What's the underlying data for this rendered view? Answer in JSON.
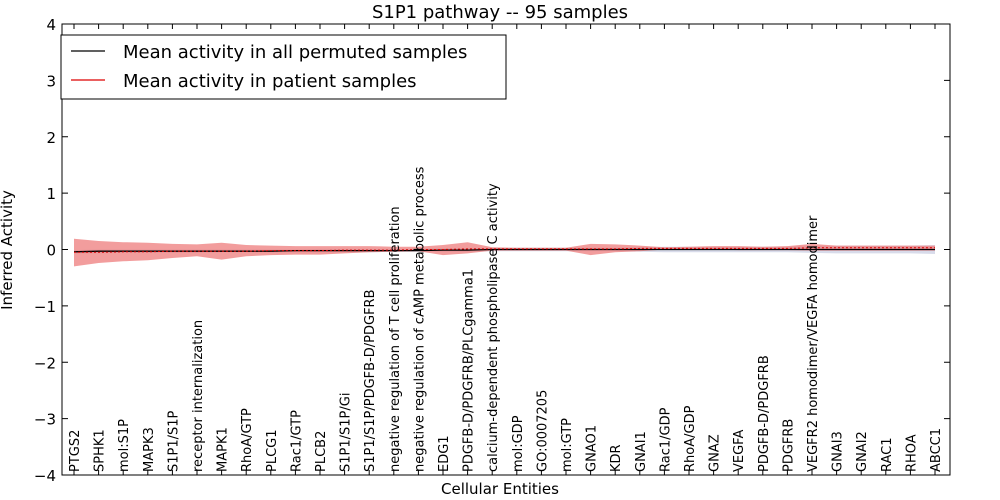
{
  "chart_data": {
    "type": "line",
    "title": "S1P1 pathway -- 95 samples",
    "xlabel": "Cellular Entities",
    "ylabel": "Inferred Activity",
    "ylim": [
      -4,
      4
    ],
    "yticks": [
      4,
      3,
      2,
      1,
      0,
      -1,
      -2,
      -3,
      -4
    ],
    "ytick_labels": [
      "4",
      "3",
      "2",
      "1",
      "0",
      "−1",
      "−2",
      "−3",
      "−4"
    ],
    "grid": false,
    "legend_position": "top-left",
    "categories": [
      "PTGS2",
      "SPHK1",
      "mol:S1P",
      "MAPK3",
      "S1P1/S1P",
      "receptor internalization",
      "MAPK1",
      "RhoA/GTP",
      "PLCG1",
      "Rac1/GTP",
      "PLCB2",
      "S1P1/S1P/Gi",
      "S1P1/S1P/PDGFB-D/PDGFRB",
      "negative regulation of T cell proliferation",
      "negative regulation of cAMP metabolic process",
      "EDG1",
      "PDGFB-D/PDGFRB/PLCgamma1",
      "calcium-dependent phospholipase C activity",
      "mol:GDP",
      "GO:0007205",
      "mol:GTP",
      "GNAO1",
      "KDR",
      "GNAI1",
      "Rac1/GDP",
      "RhoA/GDP",
      "GNAZ",
      "VEGFA",
      "PDGFB-D/PDGFRB",
      "PDGFRB",
      "VEGFR2 homodimer/VEGFA homodimer",
      "GNAI3",
      "GNAI2",
      "RAC1",
      "RHOA",
      "ABCC1"
    ],
    "series": [
      {
        "name": "Mean activity in all permuted samples",
        "color": "#000000",
        "values": [
          -0.04,
          -0.03,
          -0.03,
          -0.03,
          -0.03,
          -0.03,
          -0.03,
          -0.03,
          -0.03,
          -0.02,
          -0.02,
          -0.02,
          -0.02,
          -0.02,
          -0.02,
          -0.01,
          -0.01,
          0.0,
          0.0,
          0.0,
          0.0,
          0.0,
          0.0,
          0.0,
          0.0,
          0.0,
          0.0,
          0.0,
          0.0,
          0.0,
          0.0,
          0.0,
          0.0,
          0.0,
          0.0,
          0.0
        ],
        "lower": [
          -0.07,
          -0.07,
          -0.06,
          -0.06,
          -0.06,
          -0.06,
          -0.05,
          -0.05,
          -0.05,
          -0.05,
          -0.05,
          -0.05,
          -0.05,
          -0.04,
          -0.04,
          -0.04,
          -0.04,
          -0.03,
          -0.03,
          -0.03,
          -0.03,
          -0.03,
          -0.03,
          -0.04,
          -0.05,
          -0.05,
          -0.05,
          -0.05,
          -0.05,
          -0.05,
          -0.06,
          -0.07,
          -0.07,
          -0.07,
          -0.07,
          -0.08
        ],
        "upper": [
          -0.01,
          0.0,
          0.0,
          0.0,
          0.0,
          0.0,
          0.0,
          0.0,
          0.0,
          0.0,
          0.01,
          0.01,
          0.01,
          0.01,
          0.01,
          0.02,
          0.02,
          0.03,
          0.03,
          0.03,
          0.03,
          0.03,
          0.03,
          0.04,
          0.05,
          0.05,
          0.05,
          0.05,
          0.05,
          0.05,
          0.06,
          0.07,
          0.07,
          0.07,
          0.07,
          0.08
        ]
      },
      {
        "name": "Mean activity in patient samples",
        "color": "#dd0000",
        "values": [
          -0.05,
          -0.05,
          -0.04,
          -0.04,
          -0.03,
          -0.03,
          -0.03,
          -0.03,
          -0.02,
          -0.02,
          -0.02,
          -0.01,
          -0.01,
          -0.01,
          0.0,
          0.0,
          0.01,
          0.01,
          0.01,
          0.01,
          0.01,
          0.01,
          0.01,
          0.02,
          0.02,
          0.02,
          0.02,
          0.02,
          0.02,
          0.02,
          0.03,
          0.03,
          0.03,
          0.03,
          0.03,
          0.03
        ],
        "lower": [
          -0.3,
          -0.24,
          -0.21,
          -0.19,
          -0.15,
          -0.12,
          -0.18,
          -0.12,
          -0.1,
          -0.09,
          -0.09,
          -0.07,
          -0.05,
          -0.04,
          -0.03,
          -0.1,
          -0.07,
          -0.02,
          -0.02,
          -0.02,
          -0.02,
          -0.1,
          -0.05,
          -0.03,
          0.0,
          0.0,
          0.0,
          -0.01,
          -0.01,
          -0.01,
          -0.02,
          -0.02,
          -0.02,
          -0.02,
          -0.02,
          -0.02
        ],
        "upper": [
          0.19,
          0.15,
          0.13,
          0.12,
          0.1,
          0.09,
          0.12,
          0.08,
          0.07,
          0.06,
          0.06,
          0.06,
          0.06,
          0.05,
          0.05,
          0.08,
          0.13,
          0.04,
          0.03,
          0.03,
          0.03,
          0.1,
          0.09,
          0.07,
          0.04,
          0.05,
          0.06,
          0.06,
          0.05,
          0.06,
          0.1,
          0.07,
          0.07,
          0.07,
          0.07,
          0.07
        ]
      }
    ],
    "band_colors": [
      "#b8bdd8",
      "#ee7c7c"
    ]
  }
}
